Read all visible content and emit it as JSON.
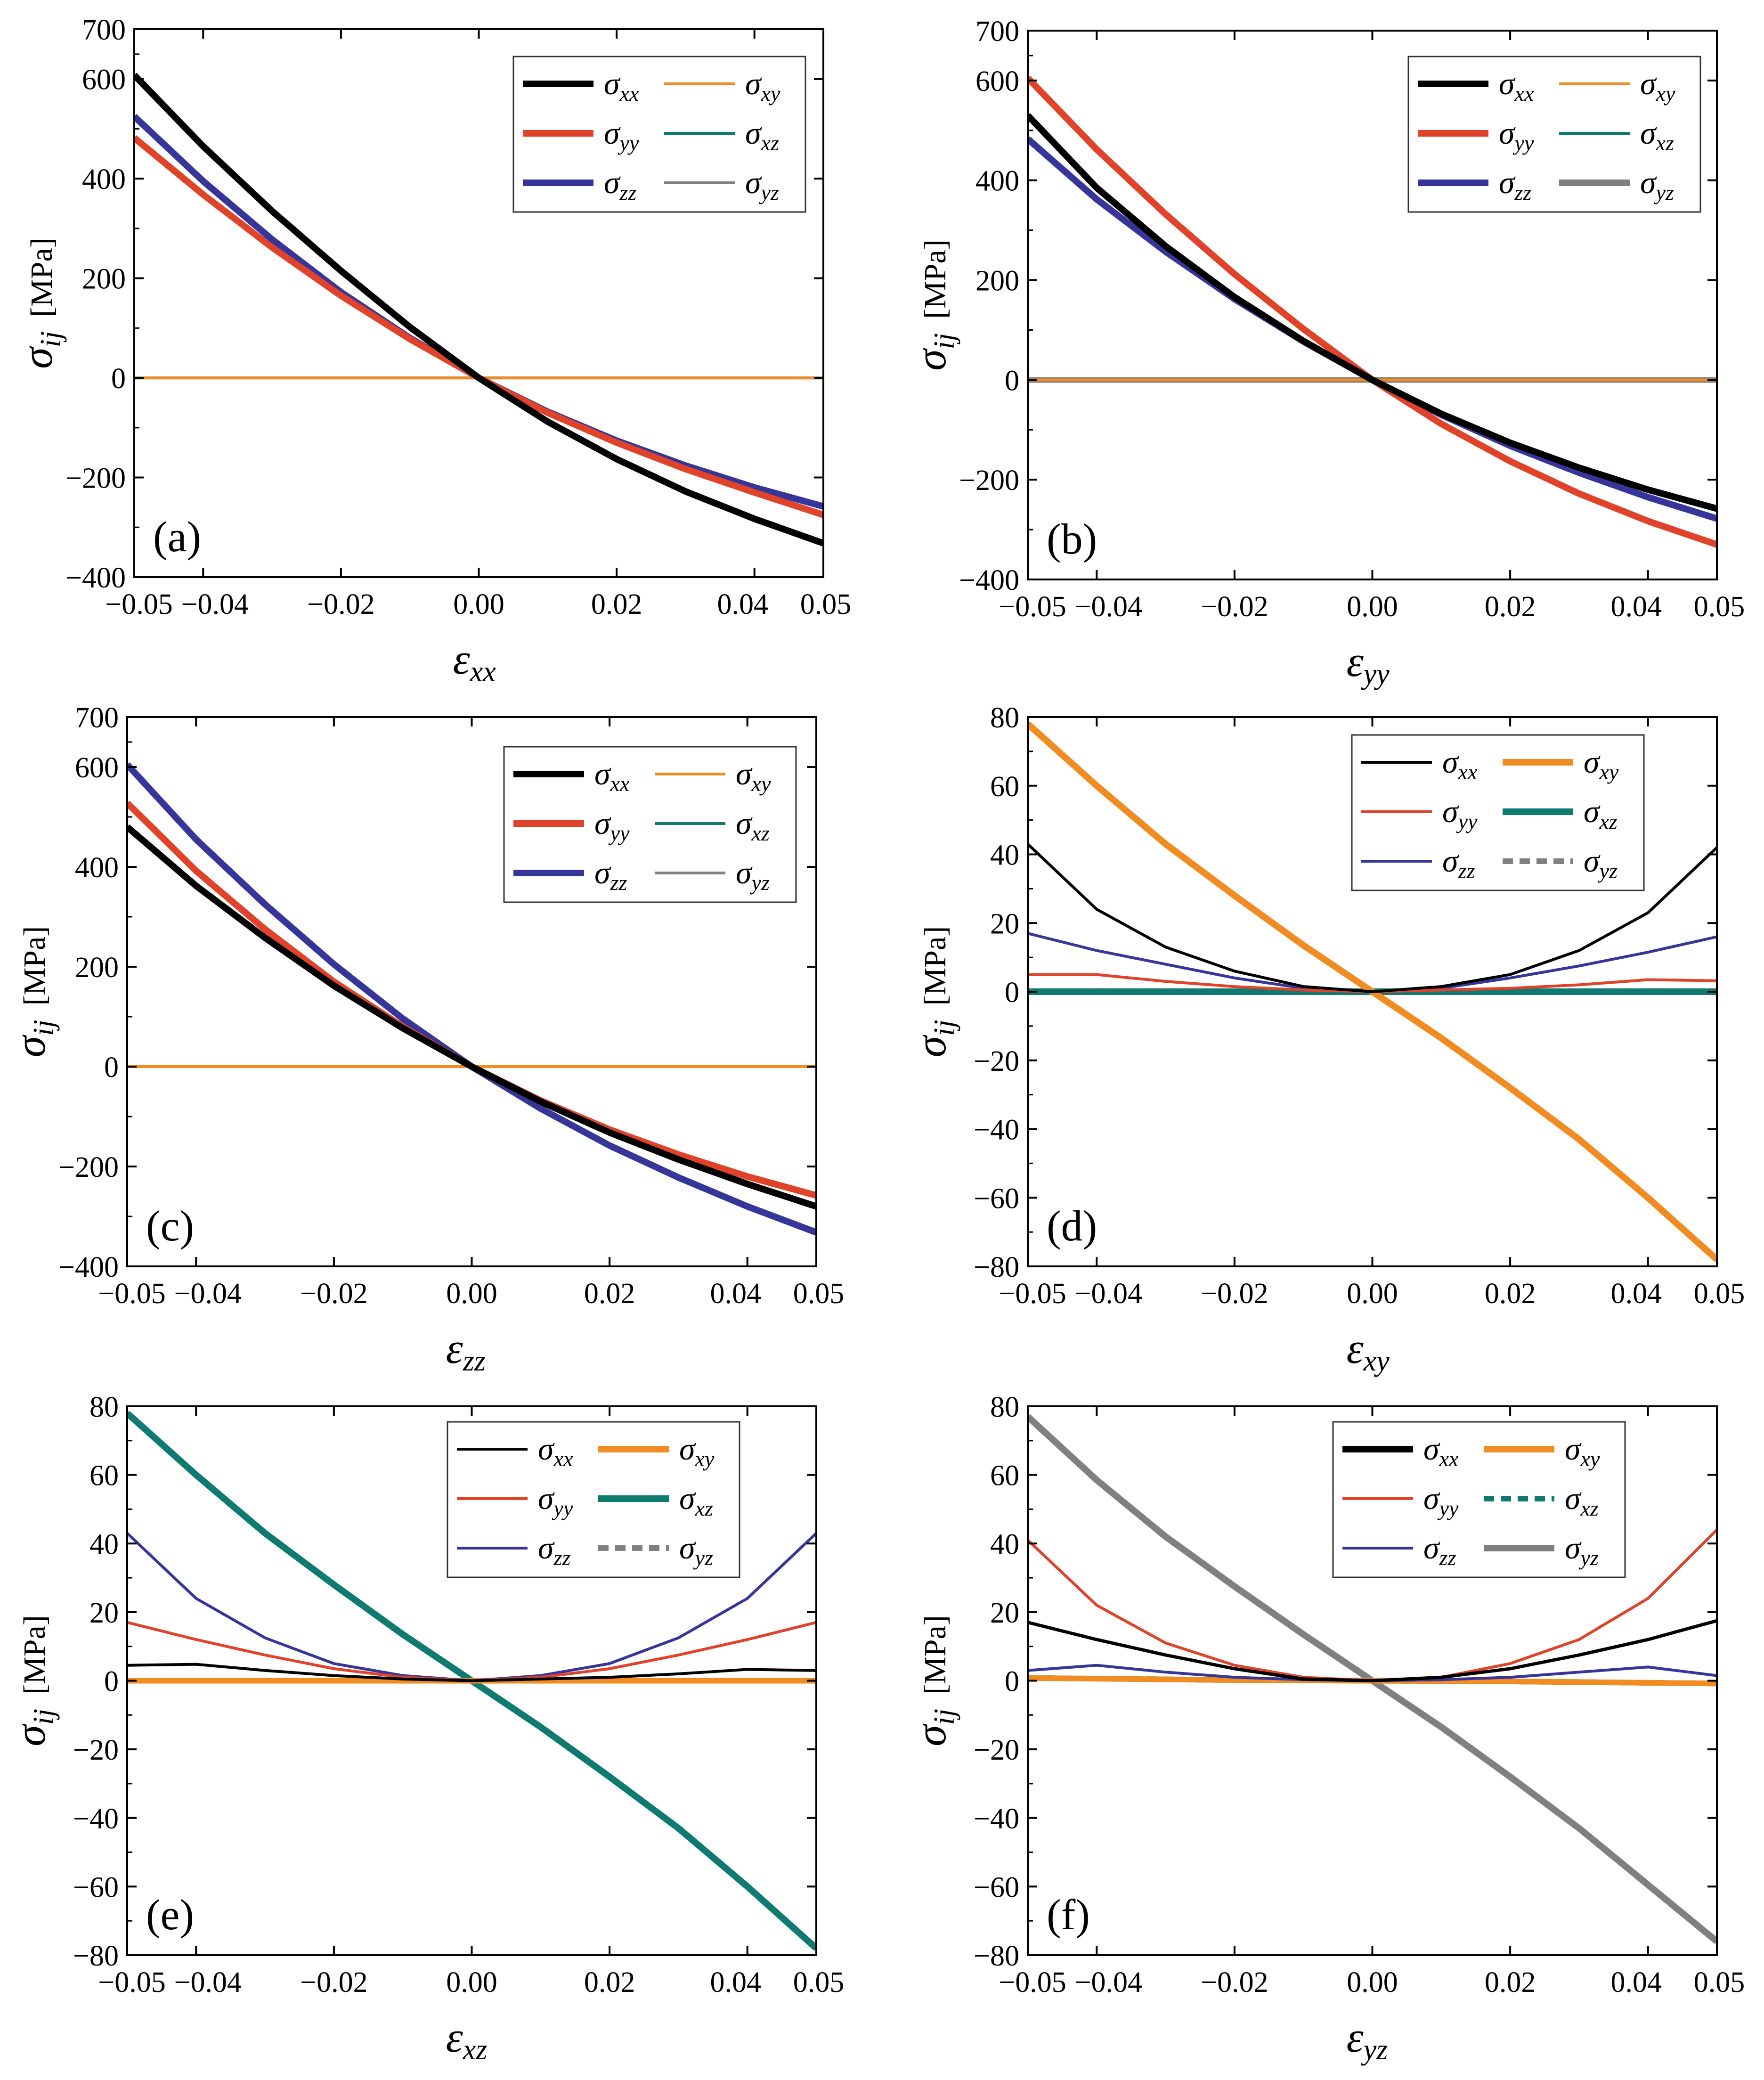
{
  "figure": {
    "colors": {
      "xx": "#000000",
      "yy": "#e0432a",
      "zz": "#36369a",
      "xy": "#f08c22",
      "xz": "#0e7a70",
      "yz": "#808080"
    },
    "legend_labels": {
      "xx": "xx",
      "yy": "yy",
      "zz": "zz",
      "xy": "xy",
      "xz": "xz",
      "yz": "yz"
    },
    "sigma_symbol": "σ",
    "epsilon_symbol": "ε"
  },
  "chart_data": [
    {
      "type": "line",
      "panel": "(a)",
      "xlabel_subscript": "xx",
      "ylabel": "σ",
      "ylabel_subscript": "ij",
      "ylabel_unit": "[MPa]",
      "xlim": [
        -0.05,
        0.05
      ],
      "ylim": [
        -400,
        700
      ],
      "x_ticks": [
        -0.05,
        -0.04,
        -0.02,
        0.0,
        0.02,
        0.04,
        0.05
      ],
      "x_tick_labels": [
        "−0.05",
        "−0.04",
        "−0.02",
        "0.00",
        "0.02",
        "0.04",
        "0.05"
      ],
      "y_ticks": [
        -400,
        -200,
        0,
        200,
        400,
        600,
        700
      ],
      "y_tick_labels": [
        "−400",
        "−200",
        "0",
        "200",
        "400",
        "600",
        "700"
      ],
      "x": [
        -0.05,
        -0.04,
        -0.03,
        -0.02,
        -0.01,
        0.0,
        0.01,
        0.02,
        0.03,
        0.04,
        0.05
      ],
      "series": [
        {
          "key": "xx",
          "legend_style": "thick",
          "values": [
            608,
            465,
            335,
            215,
            102,
            0,
            -88,
            -163,
            -228,
            -283,
            -332
          ]
        },
        {
          "key": "yy",
          "legend_style": "thick",
          "values": [
            482,
            368,
            262,
            165,
            78,
            0,
            -70,
            -130,
            -183,
            -230,
            -275
          ]
        },
        {
          "key": "zz",
          "legend_style": "thick",
          "values": [
            525,
            395,
            278,
            172,
            80,
            0,
            -68,
            -126,
            -176,
            -220,
            -258
          ]
        },
        {
          "key": "xy",
          "legend_style": "thin",
          "values": [
            0,
            0,
            0,
            0,
            0,
            0,
            0,
            0,
            0,
            0,
            0
          ]
        },
        {
          "key": "xz",
          "legend_style": "thin",
          "values": [
            0,
            0,
            0,
            0,
            0,
            0,
            0,
            0,
            0,
            0,
            0
          ]
        },
        {
          "key": "yz",
          "legend_style": "thin",
          "values": [
            0,
            0,
            0,
            0,
            0,
            0,
            0,
            0,
            0,
            0,
            0
          ]
        }
      ]
    },
    {
      "type": "line",
      "panel": "(b)",
      "xlabel_subscript": "yy",
      "ylabel": "σ",
      "ylabel_subscript": "ij",
      "ylabel_unit": "[MPa]",
      "xlim": [
        -0.05,
        0.05
      ],
      "ylim": [
        -400,
        700
      ],
      "x_ticks": [
        -0.05,
        -0.04,
        -0.02,
        0.0,
        0.02,
        0.04,
        0.05
      ],
      "x_tick_labels": [
        "−0.05",
        "−0.04",
        "−0.02",
        "0.00",
        "0.02",
        "0.04",
        "0.05"
      ],
      "y_ticks": [
        -400,
        -200,
        0,
        200,
        400,
        600,
        700
      ],
      "y_tick_labels": [
        "−400",
        "−200",
        "0",
        "200",
        "400",
        "600",
        "700"
      ],
      "x": [
        -0.05,
        -0.04,
        -0.03,
        -0.02,
        -0.01,
        0.0,
        0.01,
        0.02,
        0.03,
        0.04,
        0.05
      ],
      "series": [
        {
          "key": "xx",
          "legend_style": "thick",
          "values": [
            530,
            385,
            268,
            166,
            78,
            0,
            -68,
            -126,
            -176,
            -220,
            -258
          ]
        },
        {
          "key": "yy",
          "legend_style": "thick",
          "values": [
            605,
            462,
            332,
            212,
            102,
            0,
            -88,
            -163,
            -228,
            -283,
            -330
          ]
        },
        {
          "key": "zz",
          "legend_style": "thick",
          "values": [
            483,
            362,
            257,
            162,
            77,
            0,
            -70,
            -132,
            -186,
            -235,
            -278
          ]
        },
        {
          "key": "xy",
          "legend_style": "thin",
          "values": [
            0,
            0,
            0,
            0,
            0,
            0,
            0,
            0,
            0,
            0,
            0
          ]
        },
        {
          "key": "xz",
          "legend_style": "thin",
          "values": [
            0,
            0,
            0,
            0,
            0,
            0,
            0,
            0,
            0,
            0,
            0
          ]
        },
        {
          "key": "yz",
          "legend_style": "thick",
          "values": [
            0,
            0,
            0,
            0,
            0,
            0,
            0,
            0,
            0,
            0,
            0
          ]
        }
      ]
    },
    {
      "type": "line",
      "panel": "(c)",
      "xlabel_subscript": "zz",
      "ylabel": "σ",
      "ylabel_subscript": "ij",
      "ylabel_unit": "[MPa]",
      "xlim": [
        -0.05,
        0.05
      ],
      "ylim": [
        -400,
        700
      ],
      "x_ticks": [
        -0.05,
        -0.04,
        -0.02,
        0.0,
        0.02,
        0.04,
        0.05
      ],
      "x_tick_labels": [
        "−0.05",
        "−0.04",
        "−0.02",
        "0.00",
        "0.02",
        "0.04",
        "0.05"
      ],
      "y_ticks": [
        -400,
        -200,
        0,
        200,
        400,
        600,
        700
      ],
      "y_tick_labels": [
        "−400",
        "−200",
        "0",
        "200",
        "400",
        "600",
        "700"
      ],
      "x": [
        -0.05,
        -0.04,
        -0.03,
        -0.02,
        -0.01,
        0.0,
        0.01,
        0.02,
        0.03,
        0.04,
        0.05
      ],
      "series": [
        {
          "key": "xx",
          "legend_style": "thick",
          "values": [
            480,
            362,
            258,
            162,
            77,
            0,
            -70,
            -132,
            -186,
            -235,
            -280
          ]
        },
        {
          "key": "yy",
          "legend_style": "thick",
          "values": [
            528,
            392,
            275,
            170,
            80,
            0,
            -68,
            -126,
            -176,
            -220,
            -258
          ]
        },
        {
          "key": "zz",
          "legend_style": "thick",
          "values": [
            605,
            455,
            325,
            205,
            96,
            0,
            -84,
            -158,
            -222,
            -280,
            -332
          ]
        },
        {
          "key": "xy",
          "legend_style": "thin",
          "values": [
            0,
            0,
            0,
            0,
            0,
            0,
            0,
            0,
            0,
            0,
            0
          ]
        },
        {
          "key": "xz",
          "legend_style": "thin",
          "values": [
            0,
            0,
            0,
            0,
            0,
            0,
            0,
            0,
            0,
            0,
            0
          ]
        },
        {
          "key": "yz",
          "legend_style": "thin",
          "values": [
            0,
            0,
            0,
            0,
            0,
            0,
            0,
            0,
            0,
            0,
            0
          ]
        }
      ]
    },
    {
      "type": "line",
      "panel": "(d)",
      "xlabel_subscript": "xy",
      "ylabel": "σ",
      "ylabel_subscript": "ij",
      "ylabel_unit": "[MPa]",
      "xlim": [
        -0.05,
        0.05
      ],
      "ylim": [
        -80,
        80
      ],
      "x_ticks": [
        -0.05,
        -0.04,
        -0.02,
        0.0,
        0.02,
        0.04,
        0.05
      ],
      "x_tick_labels": [
        "−0.05",
        "−0.04",
        "−0.02",
        "0.00",
        "0.02",
        "0.04",
        "0.05"
      ],
      "y_ticks": [
        -80,
        -60,
        -40,
        -20,
        0,
        20,
        40,
        60,
        80
      ],
      "y_tick_labels": [
        "−80",
        "−60",
        "−40",
        "−20",
        "0",
        "20",
        "40",
        "60",
        "80"
      ],
      "x": [
        -0.05,
        -0.04,
        -0.03,
        -0.02,
        -0.01,
        0.0,
        0.01,
        0.02,
        0.03,
        0.04,
        0.05
      ],
      "series": [
        {
          "key": "xx",
          "legend_style": "thin",
          "values": [
            43,
            24,
            13,
            6,
            1.5,
            0,
            1.5,
            5,
            12,
            23,
            42
          ]
        },
        {
          "key": "yy",
          "legend_style": "thin",
          "values": [
            5,
            5,
            3,
            1.5,
            0.5,
            0,
            0.5,
            1,
            2,
            3.5,
            3.2
          ]
        },
        {
          "key": "zz",
          "legend_style": "thin",
          "values": [
            17,
            12,
            8,
            4,
            1,
            0,
            1,
            4,
            7.5,
            11.5,
            16
          ]
        },
        {
          "key": "xy",
          "legend_style": "thick",
          "values": [
            78,
            60,
            43,
            28,
            13.5,
            0,
            -13.5,
            -28,
            -43,
            -60,
            -78
          ]
        },
        {
          "key": "xz",
          "legend_style": "thick",
          "values": [
            0,
            0,
            0,
            0,
            0,
            0,
            0,
            0,
            0,
            0,
            0
          ]
        },
        {
          "key": "yz",
          "legend_style": "dashed",
          "values": [
            0,
            0,
            0,
            0,
            0,
            0,
            0,
            0,
            0,
            0,
            0
          ]
        }
      ]
    },
    {
      "type": "line",
      "panel": "(e)",
      "xlabel_subscript": "xz",
      "ylabel": "σ",
      "ylabel_subscript": "ij",
      "ylabel_unit": "[MPa]",
      "xlim": [
        -0.05,
        0.05
      ],
      "ylim": [
        -80,
        80
      ],
      "x_ticks": [
        -0.05,
        -0.04,
        -0.02,
        0.0,
        0.02,
        0.04,
        0.05
      ],
      "x_tick_labels": [
        "−0.05",
        "−0.04",
        "−0.02",
        "0.00",
        "0.02",
        "0.04",
        "0.05"
      ],
      "y_ticks": [
        -80,
        -60,
        -40,
        -20,
        0,
        20,
        40,
        60,
        80
      ],
      "y_tick_labels": [
        "−80",
        "−60",
        "−40",
        "−20",
        "0",
        "20",
        "40",
        "60",
        "80"
      ],
      "x": [
        -0.05,
        -0.04,
        -0.03,
        -0.02,
        -0.01,
        0.0,
        0.01,
        0.02,
        0.03,
        0.04,
        0.05
      ],
      "series": [
        {
          "key": "xx",
          "legend_style": "thin",
          "values": [
            4.5,
            4.8,
            3,
            1.5,
            0.5,
            0,
            0.5,
            1,
            2,
            3.3,
            3
          ]
        },
        {
          "key": "yy",
          "legend_style": "thin",
          "values": [
            17,
            12,
            7.5,
            3.5,
            1,
            0,
            1,
            3.5,
            7.5,
            12,
            17
          ]
        },
        {
          "key": "zz",
          "legend_style": "thin",
          "values": [
            43,
            24,
            12.5,
            5,
            1.5,
            0,
            1.5,
            5,
            12.5,
            24,
            43
          ]
        },
        {
          "key": "xy",
          "legend_style": "thick",
          "values": [
            0,
            0,
            0,
            0,
            0,
            0,
            0,
            0,
            0,
            0,
            0
          ]
        },
        {
          "key": "xz",
          "legend_style": "thick",
          "values": [
            78,
            60,
            43,
            28,
            13.5,
            0,
            -13.5,
            -28,
            -43,
            -60,
            -78
          ]
        },
        {
          "key": "yz",
          "legend_style": "dashed",
          "values": [
            0,
            0,
            0,
            0,
            0,
            0,
            0,
            0,
            0,
            0,
            0
          ]
        }
      ]
    },
    {
      "type": "line",
      "panel": "(f)",
      "xlabel_subscript": "yz",
      "ylabel": "σ",
      "ylabel_subscript": "ij",
      "ylabel_unit": "[MPa]",
      "xlim": [
        -0.05,
        0.05
      ],
      "ylim": [
        -80,
        80
      ],
      "x_ticks": [
        -0.05,
        -0.04,
        -0.02,
        0.0,
        0.02,
        0.04,
        0.05
      ],
      "x_tick_labels": [
        "−0.05",
        "−0.04",
        "−0.02",
        "0.00",
        "0.02",
        "0.04",
        "0.05"
      ],
      "y_ticks": [
        -80,
        -60,
        -40,
        -20,
        0,
        20,
        40,
        60,
        80
      ],
      "y_tick_labels": [
        "−80",
        "−60",
        "−40",
        "−20",
        "0",
        "20",
        "40",
        "60",
        "80"
      ],
      "x": [
        -0.05,
        -0.04,
        -0.03,
        -0.02,
        -0.01,
        0.0,
        0.01,
        0.02,
        0.03,
        0.04,
        0.05
      ],
      "series": [
        {
          "key": "xx",
          "legend_style": "thick",
          "values": [
            17,
            12,
            7.5,
            3.5,
            0.5,
            0,
            1,
            3.5,
            7.5,
            12,
            17.5
          ]
        },
        {
          "key": "yy",
          "legend_style": "thin",
          "values": [
            41,
            22,
            11,
            4.5,
            1,
            0,
            1,
            5,
            12,
            24,
            44
          ]
        },
        {
          "key": "zz",
          "legend_style": "thin",
          "values": [
            3,
            4.5,
            2.5,
            1,
            0.3,
            0,
            0.3,
            1,
            2.5,
            4,
            1.5
          ]
        },
        {
          "key": "xy",
          "legend_style": "thick",
          "values": [
            0.8,
            0.6,
            0.4,
            0.2,
            0.1,
            0,
            -0.1,
            -0.2,
            -0.4,
            -0.6,
            -0.8
          ]
        },
        {
          "key": "xz",
          "legend_style": "dashed",
          "values": [
            0.8,
            0.6,
            0.4,
            0.2,
            0.1,
            0,
            -0.1,
            -0.2,
            -0.4,
            -0.6,
            -0.8
          ]
        },
        {
          "key": "yz",
          "legend_style": "thick",
          "values": [
            77,
            58.5,
            42,
            27.5,
            13.5,
            0,
            -13.5,
            -28,
            -43,
            -59.5,
            -76
          ]
        }
      ]
    }
  ]
}
